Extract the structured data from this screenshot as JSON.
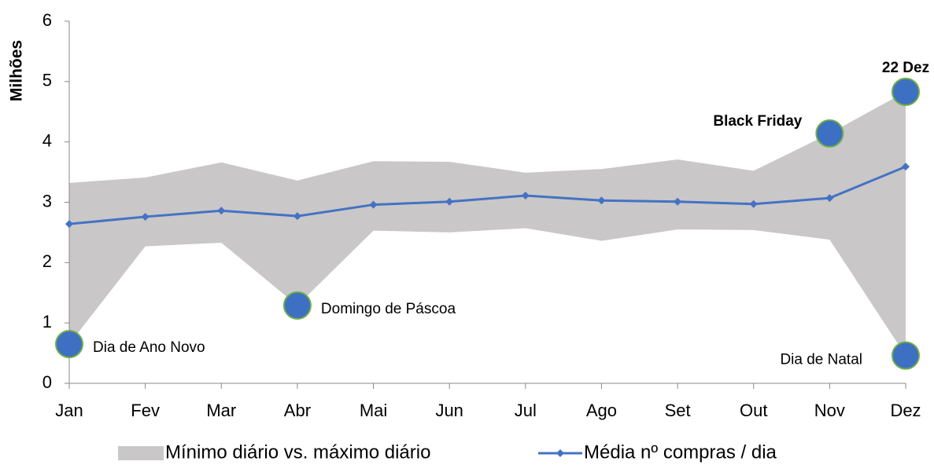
{
  "chart_data": {
    "type": "range-line",
    "y_label": "Milhões",
    "categories": [
      "Jan",
      "Fev",
      "Mar",
      "Abr",
      "Mai",
      "Jun",
      "Jul",
      "Ago",
      "Set",
      "Out",
      "Nov",
      "Dez"
    ],
    "band": {
      "name": "Mínimo diário vs. máximo diário",
      "color": "#c9c7c8",
      "low": [
        0.65,
        2.27,
        2.33,
        1.29,
        2.53,
        2.5,
        2.57,
        2.36,
        2.55,
        2.54,
        2.38,
        0.46
      ],
      "high": [
        3.32,
        3.41,
        3.66,
        3.36,
        3.68,
        3.67,
        3.49,
        3.55,
        3.71,
        3.52,
        4.14,
        4.83
      ]
    },
    "series": [
      {
        "name": "Média nº compras / dia",
        "color": "#4472c4",
        "values": [
          2.64,
          2.76,
          2.86,
          2.77,
          2.96,
          3.01,
          3.11,
          3.03,
          3.01,
          2.97,
          3.07,
          3.59
        ]
      }
    ],
    "annotations": [
      {
        "text": "Dia de Ano Novo",
        "category": "Jan",
        "edge": "low",
        "position": "right",
        "bold": false
      },
      {
        "text": "Domingo de Páscoa",
        "category": "Abr",
        "edge": "low",
        "position": "right",
        "bold": false
      },
      {
        "text": "Black Friday",
        "category": "Nov",
        "edge": "high",
        "position": "above-left",
        "bold": true
      },
      {
        "text": "22 Dez",
        "category": "Dez",
        "edge": "high",
        "position": "above",
        "bold": true
      },
      {
        "text": "Dia de Natal",
        "category": "Dez",
        "edge": "low",
        "position": "left",
        "bold": false
      }
    ],
    "marker_color": "#3d6fc2",
    "marker_stroke": "#70ad47",
    "ylim": [
      0,
      6
    ],
    "yticks": [
      0,
      1,
      2,
      3,
      4,
      5,
      6
    ],
    "grid": false,
    "legend": "bottom"
  }
}
